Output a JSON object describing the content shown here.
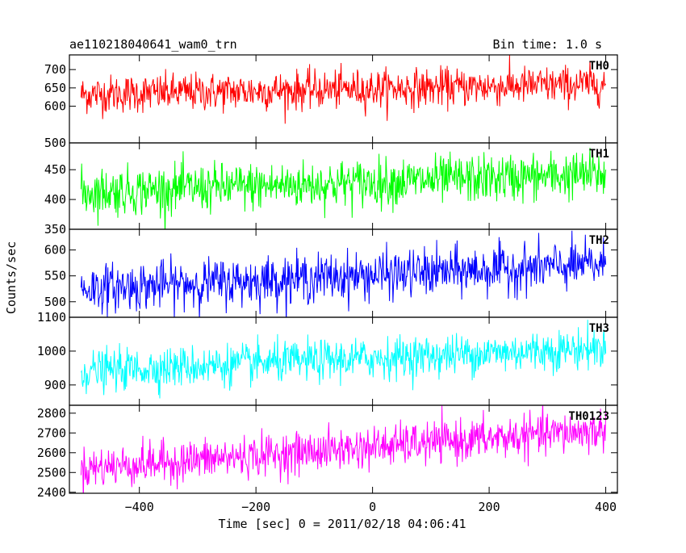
{
  "header": {
    "title": "ae110218040641_wam0_trn",
    "bin_time": "Bin time: 1.0 s"
  },
  "chart_data": {
    "type": "line",
    "xlabel": "Time [sec] 0 = 2011/02/18 04:06:41",
    "ylabel": "Counts/sec",
    "xlim": [
      -520,
      420
    ],
    "x_ticks": [
      -400,
      -200,
      0,
      200,
      400
    ],
    "x_tick_labels": [
      "−400",
      "−200",
      "0",
      "200",
      "400"
    ],
    "x_range": [
      -500,
      400
    ],
    "bin_time_sec": 1.0,
    "panels": [
      {
        "name": "TH0",
        "color": "#ff0000",
        "ylim": [
          500,
          740
        ],
        "y_ticks": [
          600,
          650,
          700
        ],
        "y_tick_labels": [
          "600",
          "650",
          "700"
        ],
        "bottom_label": "500",
        "mean_start": 632,
        "mean_end": 660,
        "noise_sd": 26
      },
      {
        "name": "TH1",
        "color": "#00ff00",
        "ylim": [
          350,
          495
        ],
        "y_ticks": [
          400,
          450
        ],
        "y_tick_labels": [
          "400",
          "450"
        ],
        "bottom_label": "350",
        "mean_start": 412,
        "mean_end": 442,
        "noise_sd": 20
      },
      {
        "name": "TH2",
        "color": "#0000ff",
        "ylim": [
          470,
          640
        ],
        "y_ticks": [
          500,
          550,
          600
        ],
        "y_tick_labels": [
          "500",
          "550",
          "600"
        ],
        "bottom_label": null,
        "mean_start": 525,
        "mean_end": 572,
        "noise_sd": 23
      },
      {
        "name": "TH3",
        "color": "#00ffff",
        "ylim": [
          840,
          1100
        ],
        "y_ticks": [
          900,
          1000
        ],
        "y_tick_labels": [
          "900",
          "1000"
        ],
        "bottom_label": "1100",
        "bottom_label_is_top_boundary": true,
        "mean_start": 940,
        "mean_end": 1010,
        "noise_sd": 30
      },
      {
        "name": "TH0123",
        "color": "#ff00ff",
        "ylim": [
          2395,
          2840
        ],
        "y_ticks": [
          2400,
          2500,
          2600,
          2700,
          2800
        ],
        "y_tick_labels": [
          "2400",
          "2500",
          "2600",
          "2700",
          "2800"
        ],
        "bottom_label": null,
        "mean_start": 2520,
        "mean_end": 2715,
        "noise_sd": 52
      }
    ]
  }
}
